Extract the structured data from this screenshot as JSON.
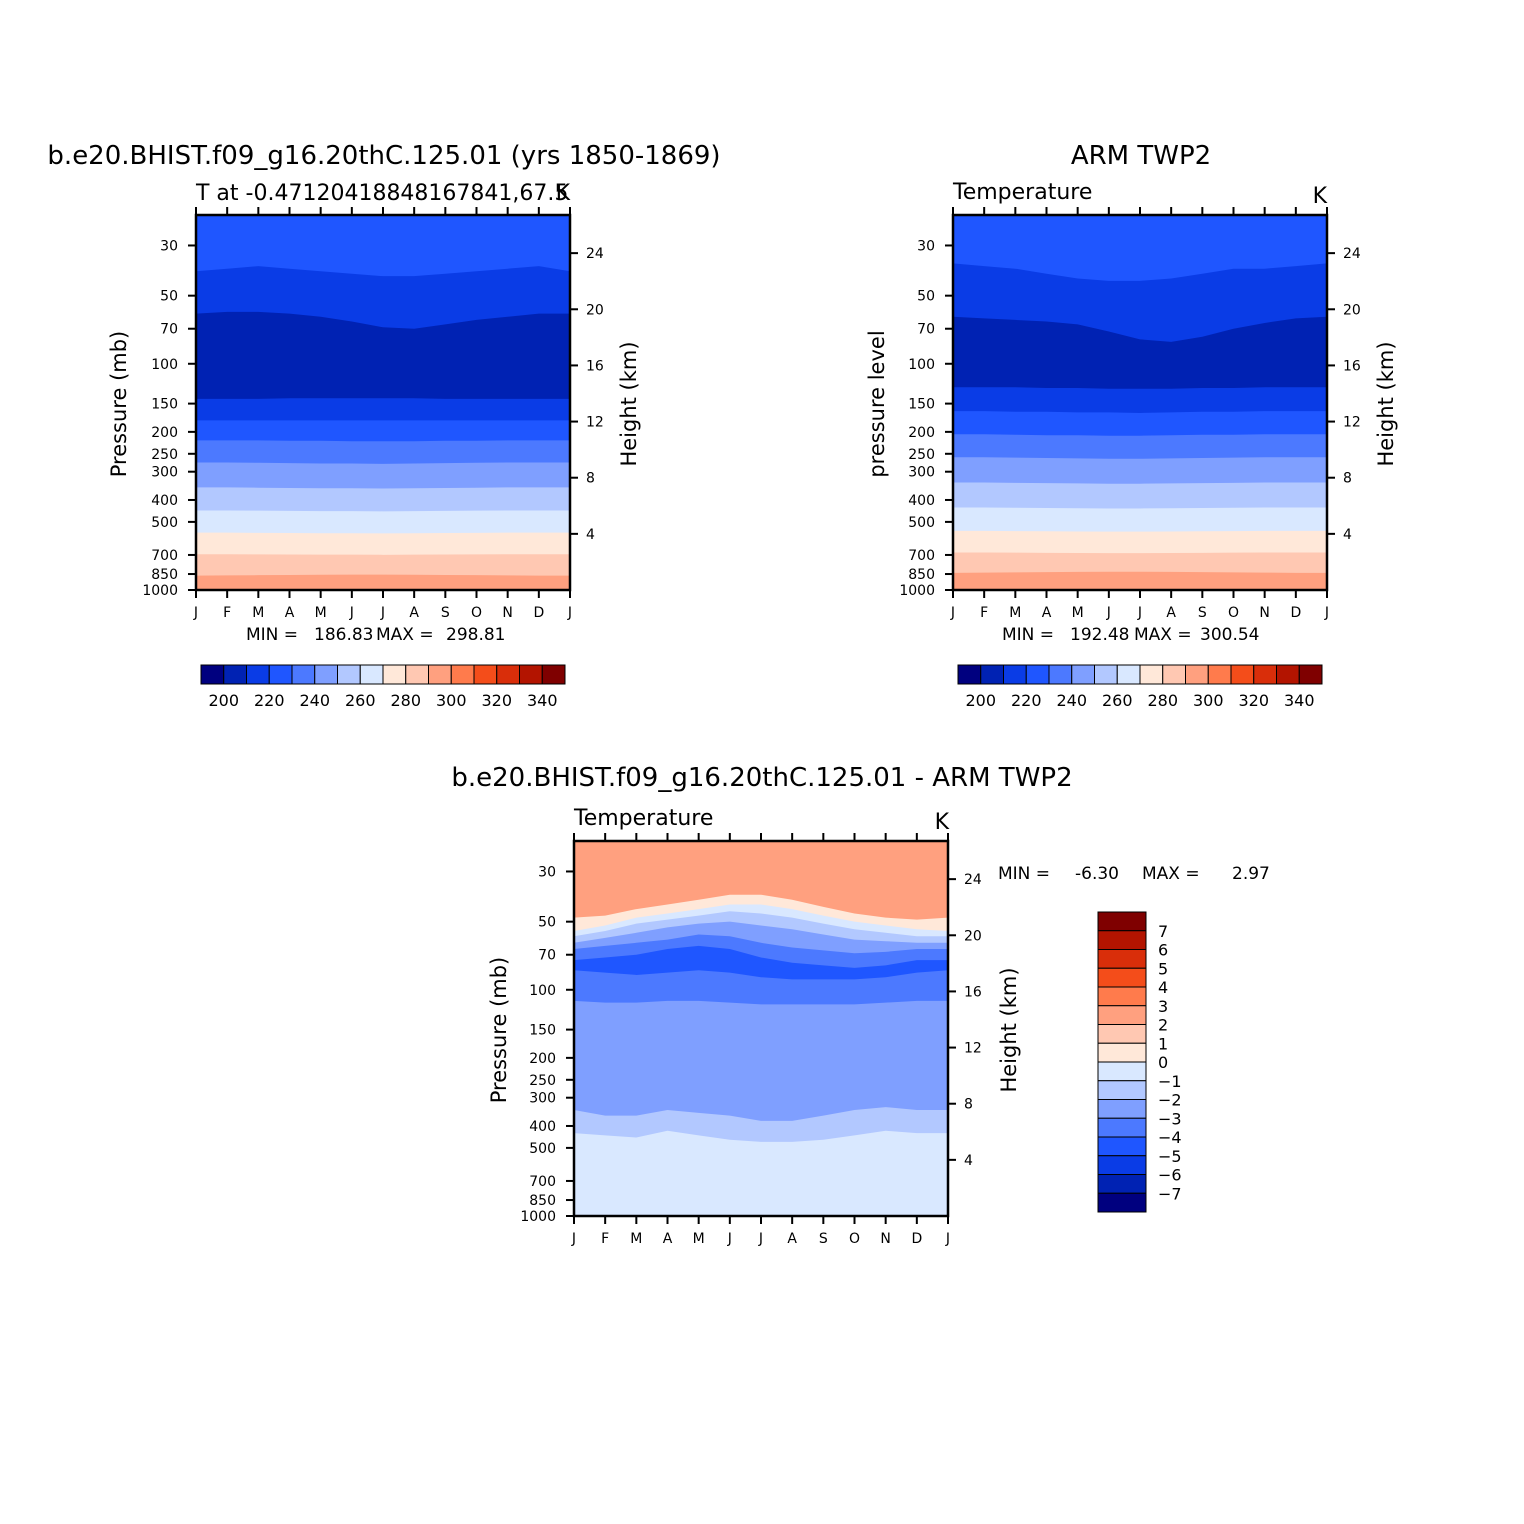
{
  "colors": {
    "abs_palette": [
      "#00007f",
      "#0022b3",
      "#0a3ce6",
      "#1f56ff",
      "#4c79ff",
      "#7f9fff",
      "#b2c8ff",
      "#d9e8ff",
      "#ffe8d9",
      "#ffc8b2",
      "#ffa07f",
      "#ff7b4c",
      "#f44d1a",
      "#d92e0a",
      "#b31400",
      "#7f0000"
    ],
    "diff_palette": [
      "#00007f",
      "#0022b3",
      "#0a3ce6",
      "#1f56ff",
      "#4c79ff",
      "#7f9fff",
      "#b2c8ff",
      "#d9e8ff",
      "#ffe8d9",
      "#ffc8b2",
      "#ffa07f",
      "#ff7b4c",
      "#f44d1a",
      "#d92e0a",
      "#b31400",
      "#7f0000"
    ]
  },
  "chart_data": [
    {
      "type": "heatmap",
      "id": "model",
      "title": "b.e20.BHIST.f09_g16.20thC.125.01 (yrs 1850-1869)",
      "left_subtitle": "T at -0.47120418848167841,67.5",
      "right_subtitle": "K",
      "ylabel": "Pressure (mb)",
      "ylabel_right": "Height (km)",
      "x_ticks": [
        "J",
        "F",
        "M",
        "A",
        "M",
        "J",
        "J",
        "A",
        "S",
        "O",
        "N",
        "D",
        "J"
      ],
      "y_ticks": [
        30,
        50,
        70,
        100,
        150,
        200,
        250,
        300,
        400,
        500,
        700,
        850,
        1000
      ],
      "height_ticks": [
        24,
        20,
        16,
        12,
        8,
        4
      ],
      "y_log_scale": true,
      "ylim": [
        1000,
        22
      ],
      "min_label": "MIN =",
      "min_value": "186.83",
      "max_label": "MAX =",
      "max_value": "298.81",
      "levels": [
        190,
        200,
        210,
        220,
        230,
        240,
        250,
        260,
        270,
        280,
        290,
        300,
        310,
        320,
        330
      ],
      "colorbar_labels": [
        "200",
        "220",
        "240",
        "260",
        "280",
        "300",
        "320",
        "340"
      ],
      "palette_key": "abs_palette",
      "band_boundaries": [
        {
          "level": 210,
          "pressure": [
            39,
            38,
            37,
            38,
            39,
            40,
            41,
            41,
            40,
            39,
            38,
            37,
            39
          ]
        },
        {
          "level": 200,
          "pressure": [
            60,
            59,
            59,
            60,
            62,
            65,
            69,
            70,
            67,
            64,
            62,
            60,
            60
          ]
        },
        {
          "level": 190,
          "pressure": [
            143,
            143,
            143,
            142,
            142,
            142,
            142,
            142,
            143,
            143,
            143,
            143,
            143
          ]
        },
        {
          "level": 200,
          "pressure": [
            178,
            178,
            178,
            178,
            178,
            178,
            178,
            178,
            178,
            178,
            178,
            178,
            178
          ]
        },
        {
          "level": 210,
          "pressure": [
            218,
            218,
            218,
            219,
            219,
            220,
            220,
            220,
            219,
            219,
            218,
            218,
            218
          ]
        },
        {
          "level": 220,
          "pressure": [
            273,
            273,
            274,
            275,
            276,
            276,
            277,
            276,
            275,
            274,
            273,
            273,
            273
          ]
        },
        {
          "level": 230,
          "pressure": [
            352,
            352,
            353,
            354,
            355,
            355,
            356,
            355,
            354,
            353,
            352,
            352,
            352
          ]
        },
        {
          "level": 240,
          "pressure": [
            445,
            445,
            446,
            447,
            448,
            448,
            449,
            448,
            447,
            446,
            445,
            445,
            445
          ]
        },
        {
          "level": 250,
          "pressure": [
            558,
            558,
            559,
            560,
            561,
            561,
            562,
            561,
            560,
            559,
            558,
            558,
            558
          ]
        },
        {
          "level": 260,
          "pressure": [
            695,
            695,
            696,
            697,
            698,
            698,
            699,
            698,
            697,
            696,
            695,
            695,
            695
          ]
        },
        {
          "level": 270,
          "pressure": [
            864,
            862,
            860,
            858,
            856,
            855,
            855,
            856,
            858,
            860,
            862,
            864,
            864
          ]
        },
        {
          "level": 280,
          "pressure": [
            1000,
            1000,
            1000,
            1000,
            1000,
            1000,
            1000,
            1000,
            1000,
            1000,
            1000,
            1000,
            1000
          ]
        }
      ]
    },
    {
      "type": "heatmap",
      "id": "obs",
      "title": "ARM TWP2",
      "left_subtitle": "Temperature",
      "right_subtitle": "K",
      "ylabel": "pressure level",
      "ylabel_right": "Height (km)",
      "x_ticks": [
        "J",
        "F",
        "M",
        "A",
        "M",
        "J",
        "J",
        "A",
        "S",
        "O",
        "N",
        "D",
        "J"
      ],
      "y_ticks": [
        30,
        50,
        70,
        100,
        150,
        200,
        250,
        300,
        400,
        500,
        700,
        850,
        1000
      ],
      "height_ticks": [
        24,
        20,
        16,
        12,
        8,
        4
      ],
      "y_log_scale": true,
      "ylim": [
        1000,
        22
      ],
      "min_label": "MIN =",
      "min_value": "192.48",
      "max_label": "MAX =",
      "max_value": "300.54",
      "levels": [
        190,
        200,
        210,
        220,
        230,
        240,
        250,
        260,
        270,
        280,
        290,
        300,
        310,
        320,
        330
      ],
      "colorbar_labels": [
        "200",
        "220",
        "240",
        "260",
        "280",
        "300",
        "320",
        "340"
      ],
      "palette_key": "abs_palette",
      "band_boundaries": [
        {
          "level": 210,
          "pressure": [
            36,
            37,
            38,
            40,
            42,
            43,
            43,
            42,
            40,
            38,
            38,
            37,
            36
          ]
        },
        {
          "level": 200,
          "pressure": [
            62,
            63,
            64,
            65,
            67,
            72,
            78,
            80,
            76,
            70,
            66,
            63,
            62
          ]
        },
        {
          "level": 190,
          "pressure": [
            127,
            127,
            127,
            128,
            128,
            129,
            129,
            129,
            128,
            128,
            127,
            127,
            127
          ]
        },
        {
          "level": 200,
          "pressure": [
            162,
            162,
            163,
            163,
            164,
            164,
            165,
            164,
            163,
            163,
            162,
            162,
            162
          ]
        },
        {
          "level": 210,
          "pressure": [
            205,
            205,
            206,
            207,
            207,
            208,
            208,
            207,
            206,
            206,
            205,
            205,
            205
          ]
        },
        {
          "level": 220,
          "pressure": [
            259,
            259,
            260,
            261,
            262,
            263,
            263,
            262,
            261,
            260,
            259,
            259,
            259
          ]
        },
        {
          "level": 230,
          "pressure": [
            335,
            335,
            336,
            337,
            338,
            339,
            339,
            338,
            337,
            336,
            335,
            335,
            335
          ]
        },
        {
          "level": 240,
          "pressure": [
            432,
            432,
            433,
            434,
            435,
            436,
            436,
            435,
            434,
            433,
            432,
            432,
            432
          ]
        },
        {
          "level": 250,
          "pressure": [
            548,
            548,
            549,
            550,
            551,
            552,
            552,
            551,
            550,
            549,
            548,
            548,
            548
          ]
        },
        {
          "level": 260,
          "pressure": [
            683,
            683,
            684,
            685,
            686,
            687,
            687,
            686,
            685,
            684,
            683,
            683,
            683
          ]
        },
        {
          "level": 270,
          "pressure": [
            840,
            838,
            836,
            834,
            832,
            830,
            830,
            832,
            834,
            836,
            838,
            840,
            840
          ]
        },
        {
          "level": 280,
          "pressure": [
            1000,
            1000,
            1000,
            1000,
            1000,
            1000,
            1000,
            1000,
            1000,
            1000,
            1000,
            1000,
            1000
          ]
        }
      ]
    },
    {
      "type": "heatmap",
      "id": "diff",
      "title": "b.e20.BHIST.f09_g16.20thC.125.01 - ARM TWP2",
      "left_subtitle": "Temperature",
      "right_subtitle": "K",
      "ylabel": "Pressure (mb)",
      "ylabel_right": "Height (km)",
      "x_ticks": [
        "J",
        "F",
        "M",
        "A",
        "M",
        "J",
        "J",
        "A",
        "S",
        "O",
        "N",
        "D",
        "J"
      ],
      "y_ticks": [
        30,
        50,
        70,
        100,
        150,
        200,
        250,
        300,
        400,
        500,
        700,
        850,
        1000
      ],
      "height_ticks": [
        24,
        20,
        16,
        12,
        8,
        4
      ],
      "y_log_scale": true,
      "ylim": [
        1000,
        22
      ],
      "min_label": "MIN =",
      "min_value": "-6.30",
      "max_label": "MAX =",
      "max_value": "2.97",
      "levels": [
        -7,
        -6,
        -5,
        -4,
        -3,
        -2,
        -1,
        0,
        1,
        2,
        3,
        4,
        5,
        6,
        7
      ],
      "colorbar_labels": [
        "7",
        "6",
        "5",
        "4",
        "3",
        "2",
        "1",
        "0",
        "-1",
        "-2",
        "-3",
        "-4",
        "-5",
        "-6",
        "-7"
      ],
      "palette_key": "diff_palette",
      "band_boundaries": [
        {
          "level": 1,
          "pressure": [
            22,
            22,
            22,
            22,
            22,
            22,
            22,
            22,
            22,
            22,
            22,
            22,
            22
          ]
        },
        {
          "level": 2,
          "pressure": [
            48,
            47,
            44,
            42,
            40,
            38,
            38,
            40,
            43,
            46,
            48,
            49,
            48
          ]
        },
        {
          "level": 0,
          "pressure": [
            55,
            52,
            48,
            46,
            44,
            42,
            42,
            44,
            47,
            50,
            52,
            54,
            55
          ]
        },
        {
          "level": -1,
          "pressure": [
            58,
            55,
            51,
            49,
            47,
            45,
            46,
            48,
            51,
            54,
            56,
            58,
            58
          ]
        },
        {
          "level": -2,
          "pressure": [
            62,
            59,
            56,
            53,
            51,
            50,
            52,
            54,
            57,
            60,
            61,
            62,
            62
          ]
        },
        {
          "level": -3,
          "pressure": [
            66,
            64,
            62,
            60,
            57,
            58,
            62,
            65,
            67,
            69,
            68,
            66,
            66
          ]
        },
        {
          "level": -4,
          "pressure": [
            74,
            72,
            70,
            66,
            64,
            66,
            72,
            76,
            78,
            80,
            78,
            74,
            74
          ]
        },
        {
          "level": -5,
          "pressure": [
            82,
            84,
            86,
            84,
            82,
            84,
            88,
            90,
            90,
            90,
            88,
            84,
            82
          ]
        },
        {
          "level": -4,
          "pressure": [
            112,
            114,
            114,
            112,
            112,
            114,
            116,
            116,
            116,
            116,
            114,
            112,
            112
          ]
        },
        {
          "level": -3,
          "pressure": [
            340,
            360,
            360,
            340,
            350,
            360,
            380,
            380,
            360,
            340,
            330,
            340,
            340
          ]
        },
        {
          "level": -2,
          "pressure": [
            430,
            440,
            450,
            420,
            440,
            460,
            470,
            470,
            460,
            440,
            420,
            430,
            430
          ]
        },
        {
          "level": -1,
          "pressure": [
            1000,
            1000,
            1000,
            1000,
            1000,
            1000,
            1000,
            1000,
            1000,
            1000,
            1000,
            1000,
            1000
          ]
        }
      ]
    }
  ]
}
